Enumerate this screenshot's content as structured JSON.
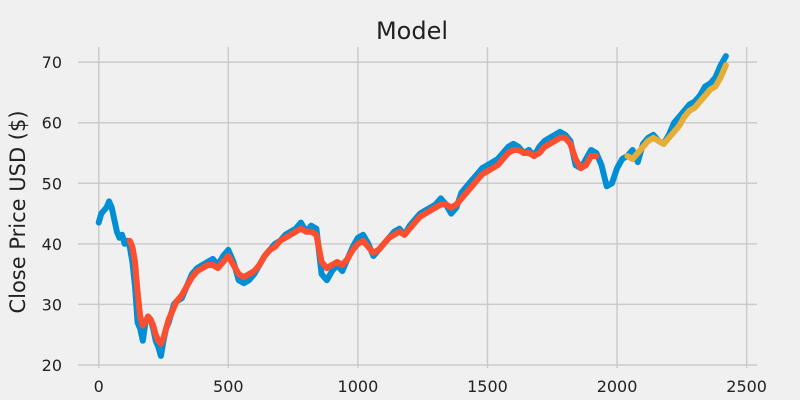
{
  "chart_data": {
    "type": "line",
    "title": "Model",
    "xlabel": "",
    "ylabel": "Close Price USD ($)",
    "xlim": [
      -80,
      2540
    ],
    "ylim": [
      19.5,
      72.5
    ],
    "xticks": [
      0,
      500,
      1000,
      1500,
      2000,
      2500
    ],
    "yticks": [
      20,
      30,
      40,
      50,
      60,
      70
    ],
    "grid": true,
    "legend": "none",
    "series": [
      {
        "color": "#008fd5",
        "line_width": 6,
        "x": [
          0,
          10,
          20,
          30,
          40,
          50,
          60,
          70,
          80,
          90,
          100,
          110,
          120,
          130,
          140,
          150,
          160,
          170,
          180,
          190,
          200,
          210,
          220,
          230,
          240,
          250,
          260,
          270,
          280,
          290,
          300,
          320,
          340,
          360,
          380,
          400,
          420,
          440,
          460,
          480,
          500,
          520,
          540,
          560,
          580,
          600,
          620,
          640,
          660,
          680,
          700,
          720,
          740,
          760,
          780,
          800,
          820,
          840,
          860,
          880,
          900,
          920,
          940,
          960,
          980,
          1000,
          1020,
          1040,
          1060,
          1080,
          1100,
          1120,
          1140,
          1160,
          1180,
          1200,
          1220,
          1240,
          1260,
          1280,
          1300,
          1320,
          1340,
          1360,
          1380,
          1400,
          1420,
          1440,
          1460,
          1480,
          1500,
          1520,
          1540,
          1560,
          1580,
          1600,
          1620,
          1640,
          1660,
          1680,
          1700,
          1720,
          1740,
          1760,
          1780,
          1800,
          1820,
          1840,
          1860,
          1880,
          1900,
          1920,
          1940,
          1960,
          1980,
          2000,
          2020,
          2040,
          2060,
          2080,
          2100,
          2120,
          2140,
          2160,
          2180,
          2200,
          2220,
          2240,
          2260,
          2280,
          2300,
          2320,
          2340,
          2360,
          2380,
          2400,
          2420
        ],
        "y": [
          43.5,
          45.0,
          45.5,
          46.0,
          47.0,
          46.0,
          44.0,
          42.0,
          41.0,
          41.5,
          40.0,
          40.5,
          39.5,
          37.0,
          33.0,
          27.0,
          26.0,
          24.0,
          27.0,
          28.0,
          27.5,
          26.0,
          24.0,
          23.0,
          21.5,
          24.0,
          26.0,
          27.0,
          28.5,
          30.0,
          30.5,
          31.0,
          33.0,
          35.0,
          36.0,
          36.5,
          37.0,
          37.5,
          36.5,
          38.0,
          39.0,
          37.0,
          34.0,
          33.5,
          34.0,
          35.0,
          36.5,
          38.0,
          39.0,
          40.0,
          40.5,
          41.5,
          42.0,
          42.5,
          43.5,
          42.0,
          43.0,
          42.5,
          35.0,
          34.0,
          35.5,
          36.5,
          35.5,
          37.5,
          39.5,
          41.0,
          41.5,
          40.0,
          38.0,
          39.0,
          40.0,
          41.0,
          42.0,
          42.5,
          41.5,
          43.0,
          44.0,
          45.0,
          45.5,
          46.0,
          46.5,
          47.5,
          46.5,
          45.0,
          46.0,
          48.5,
          49.5,
          50.5,
          51.5,
          52.5,
          53.0,
          53.5,
          54.0,
          55.0,
          56.0,
          56.5,
          56.0,
          55.0,
          55.5,
          54.5,
          56.0,
          57.0,
          57.5,
          58.0,
          58.5,
          58.0,
          57.0,
          53.0,
          52.5,
          54.0,
          55.5,
          55.0,
          53.0,
          49.5,
          50.0,
          52.5,
          54.0,
          54.5,
          55.5,
          53.5,
          56.5,
          57.5,
          58.0,
          57.0,
          56.5,
          58.0,
          60.0,
          61.0,
          62.0,
          63.0,
          63.5,
          64.5,
          66.0,
          66.5,
          67.5,
          69.5,
          71.0
        ]
      },
      {
        "color": "#fc4f30",
        "line_width": 6,
        "x": [
          120,
          130,
          140,
          150,
          160,
          170,
          180,
          190,
          200,
          210,
          220,
          230,
          240,
          250,
          260,
          270,
          280,
          290,
          300,
          320,
          340,
          360,
          380,
          400,
          420,
          440,
          460,
          480,
          500,
          520,
          540,
          560,
          580,
          600,
          620,
          640,
          660,
          680,
          700,
          720,
          740,
          760,
          780,
          800,
          820,
          840,
          860,
          880,
          900,
          920,
          940,
          960,
          980,
          1000,
          1020,
          1040,
          1060,
          1080,
          1100,
          1120,
          1140,
          1160,
          1180,
          1200,
          1220,
          1240,
          1260,
          1280,
          1300,
          1320,
          1340,
          1360,
          1380,
          1400,
          1420,
          1440,
          1460,
          1480,
          1500,
          1520,
          1540,
          1560,
          1580,
          1600,
          1620,
          1640,
          1660,
          1680,
          1700,
          1720,
          1740,
          1760,
          1780,
          1800,
          1820,
          1840,
          1860,
          1880,
          1900,
          1920
        ],
        "y": [
          40.5,
          39.5,
          37.0,
          32.0,
          28.0,
          26.5,
          27.0,
          28.0,
          27.5,
          26.5,
          25.0,
          24.0,
          23.5,
          24.5,
          26.0,
          27.5,
          28.5,
          29.5,
          30.5,
          31.5,
          33.0,
          34.5,
          35.5,
          36.0,
          36.5,
          36.5,
          36.0,
          37.0,
          38.0,
          36.5,
          35.0,
          34.5,
          35.0,
          35.5,
          36.5,
          38.0,
          39.0,
          39.5,
          40.5,
          41.0,
          41.5,
          42.0,
          42.5,
          42.0,
          42.0,
          41.5,
          37.0,
          36.0,
          36.5,
          37.0,
          36.5,
          37.5,
          39.0,
          40.0,
          40.5,
          39.5,
          38.5,
          39.0,
          40.0,
          41.0,
          41.5,
          42.0,
          41.5,
          42.5,
          43.5,
          44.5,
          45.0,
          45.5,
          46.0,
          46.5,
          46.5,
          46.0,
          46.5,
          47.5,
          48.5,
          49.5,
          50.5,
          51.5,
          52.0,
          52.5,
          53.0,
          54.0,
          55.0,
          55.5,
          55.5,
          55.0,
          55.0,
          54.5,
          55.0,
          56.0,
          56.5,
          57.0,
          57.5,
          57.5,
          56.5,
          54.0,
          52.5,
          53.0,
          54.5,
          54.5
        ]
      },
      {
        "color": "#e5ae38",
        "line_width": 6,
        "x": [
          2040,
          2060,
          2080,
          2100,
          2120,
          2140,
          2160,
          2180,
          2200,
          2220,
          2240,
          2260,
          2280,
          2300,
          2320,
          2340,
          2360,
          2380,
          2400,
          2420
        ],
        "y": [
          54.5,
          54.0,
          55.0,
          56.0,
          57.0,
          57.5,
          57.0,
          56.5,
          57.5,
          58.5,
          59.5,
          61.0,
          62.0,
          62.5,
          63.5,
          64.5,
          65.5,
          66.0,
          67.5,
          69.5
        ]
      }
    ]
  }
}
